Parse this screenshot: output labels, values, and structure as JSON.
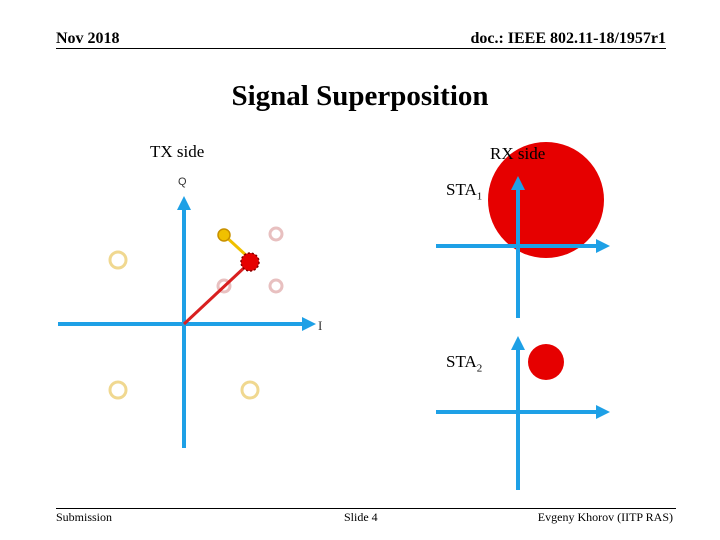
{
  "header": {
    "date": "Nov 2018",
    "doc_id": "doc.: IEEE 802.11-18/1957r1"
  },
  "title": "Signal Superposition",
  "tx_label": "TX side",
  "rx_label": "RX side",
  "axis": {
    "q": "Q",
    "i": "I"
  },
  "sta1": {
    "name": "STA",
    "sub": "1"
  },
  "sta2": {
    "name": "STA",
    "sub": "2"
  },
  "footer": {
    "left": "Submission",
    "center": "Slide 4",
    "right": "Evgeny Khorov (IITP RAS)"
  },
  "colors": {
    "axis": "#1ea0e6",
    "signal": "#e60000",
    "constellation_a": "#f0d890",
    "constellation_b": "#e8c0c0",
    "selected": "#f0c000"
  }
}
